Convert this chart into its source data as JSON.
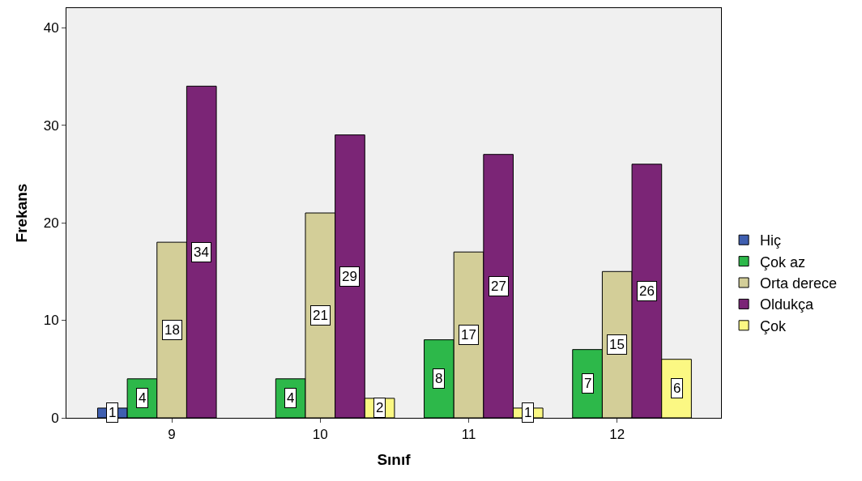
{
  "chart_data": {
    "type": "bar",
    "xlabel": "Sınıf",
    "ylabel": "Frekans",
    "categories": [
      "9",
      "10",
      "11",
      "12"
    ],
    "series": [
      {
        "name": "Hiç",
        "color": "#3f5fb0",
        "values": [
          1,
          null,
          null,
          null
        ]
      },
      {
        "name": "Çok az",
        "color": "#2db84a",
        "values": [
          4,
          4,
          8,
          7
        ]
      },
      {
        "name": "Orta derece",
        "color": "#d3ce98",
        "values": [
          18,
          21,
          17,
          15
        ]
      },
      {
        "name": "Oldukça",
        "color": "#7b2576",
        "values": [
          34,
          29,
          27,
          26
        ]
      },
      {
        "name": "Çok",
        "color": "#fbf883",
        "values": [
          null,
          2,
          1,
          6
        ]
      }
    ],
    "ylim": [
      0,
      42
    ],
    "yticks": [
      0,
      10,
      20,
      30,
      40
    ],
    "grid": false,
    "legend": "right",
    "data_labels": true
  }
}
